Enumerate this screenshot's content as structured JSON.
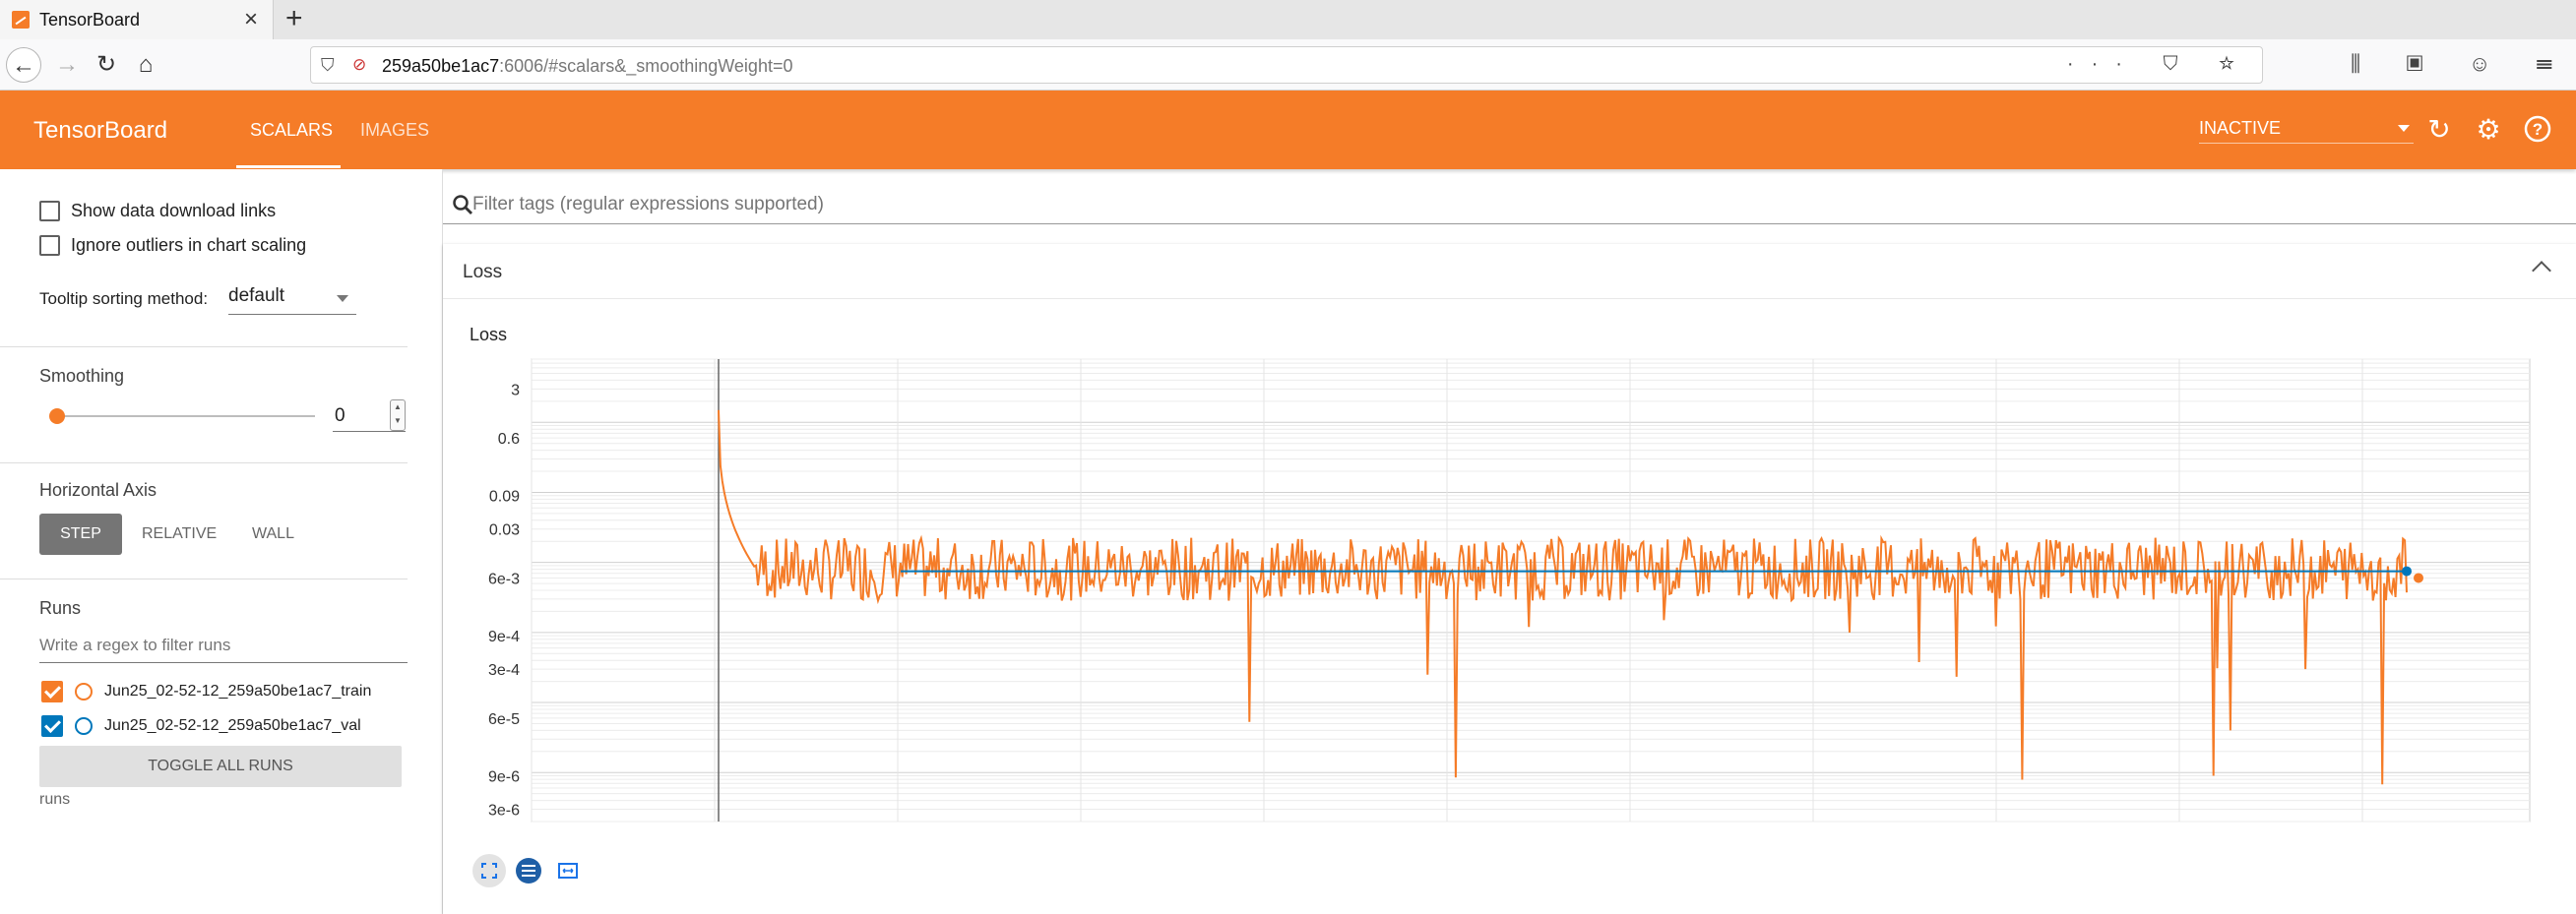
{
  "browser": {
    "tab_title": "TensorBoard",
    "url_host": "259a50be1ac7",
    "url_rest": ":6006/#scalars&_smoothingWeight=0",
    "url_actions": "··· ⛉ ☆",
    "toolbar_icons": "⫼ ▣ ☺ ☰"
  },
  "header": {
    "logo": "TensorBoard",
    "tabs": [
      "SCALARS",
      "IMAGES"
    ],
    "inactive_label": "INACTIVE",
    "accent_color": "#f57c28"
  },
  "sidebar": {
    "show_download_links": "Show data download links",
    "ignore_outliers": "Ignore outliers in chart scaling",
    "tooltip_sort_label": "Tooltip sorting method:",
    "tooltip_sort_value": "default",
    "smoothing_title": "Smoothing",
    "smoothing_value": "0",
    "horizontal_axis_title": "Horizontal Axis",
    "axis_options": [
      "STEP",
      "RELATIVE",
      "WALL"
    ],
    "runs_title": "Runs",
    "runs_filter_placeholder": "Write a regex to filter runs",
    "runs": [
      {
        "name": "Jun25_02-52-12_259a50be1ac7_train",
        "color": "#f57c28"
      },
      {
        "name": "Jun25_02-52-12_259a50be1ac7_val",
        "color": "#0077bb"
      }
    ],
    "toggle_all": "TOGGLE ALL RUNS",
    "runs_footer": "runs"
  },
  "main": {
    "filter_placeholder": "Filter tags (regular expressions supported)",
    "card_title": "Loss",
    "chart_title": "Loss"
  },
  "chart_data": {
    "type": "line",
    "title": "Loss",
    "y_scale": "log",
    "y_ticks": [
      "3",
      "0.6",
      "0.09",
      "0.03",
      "6e-3",
      "9e-4",
      "3e-4",
      "6e-5",
      "9e-6",
      "3e-6"
    ],
    "grid": true,
    "series": [
      {
        "name": "Jun25_02-52-12_259a50be1ac7_train",
        "color": "#f57c28",
        "summary": {
          "start": 1.5,
          "plateau": 0.008,
          "min_spike": 8e-06
        }
      },
      {
        "name": "Jun25_02-52-12_259a50be1ac7_val",
        "color": "#0077bb",
        "summary": {
          "level": 0.0075
        }
      }
    ]
  }
}
